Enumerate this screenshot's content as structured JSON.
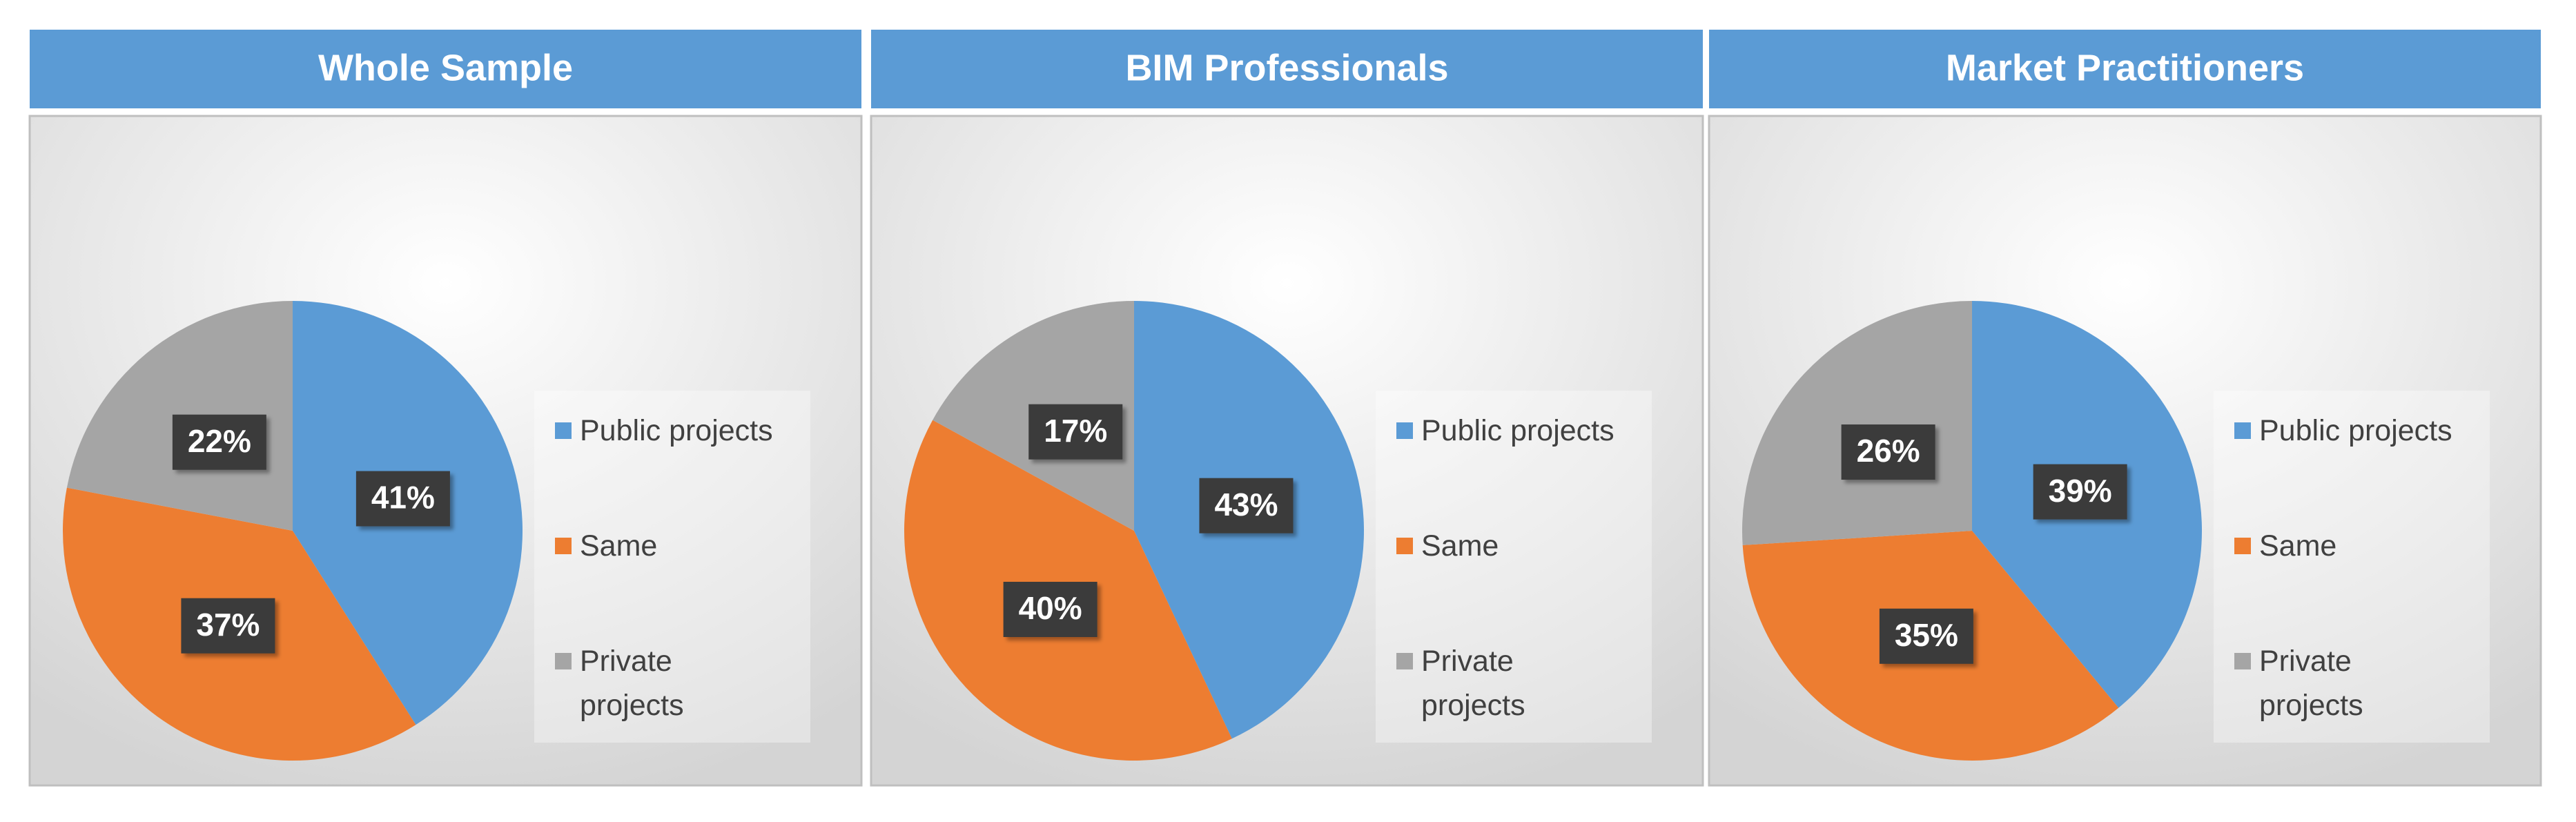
{
  "chart_data": [
    {
      "type": "pie",
      "title": "Whole Sample",
      "categories": [
        "Public projects",
        "Same",
        "Private projects"
      ],
      "values": [
        41,
        37,
        22
      ],
      "value_labels": [
        "41%",
        "37%",
        "22%"
      ],
      "colors": [
        "#5b9bd5",
        "#ed7d31",
        "#a5a5a5"
      ],
      "legend": "right"
    },
    {
      "type": "pie",
      "title": "BIM Professionals",
      "categories": [
        "Public projects",
        "Same",
        "Private projects"
      ],
      "values": [
        43,
        40,
        17
      ],
      "value_labels": [
        "43%",
        "40%",
        "17%"
      ],
      "colors": [
        "#5b9bd5",
        "#ed7d31",
        "#a5a5a5"
      ],
      "legend": "right"
    },
    {
      "type": "pie",
      "title": "Market Practitioners",
      "categories": [
        "Public projects",
        "Same",
        "Private projects"
      ],
      "values": [
        39,
        35,
        26
      ],
      "value_labels": [
        "39%",
        "35%",
        "26%"
      ],
      "colors": [
        "#5b9bd5",
        "#ed7d31",
        "#a5a5a5"
      ],
      "legend": "right"
    }
  ]
}
